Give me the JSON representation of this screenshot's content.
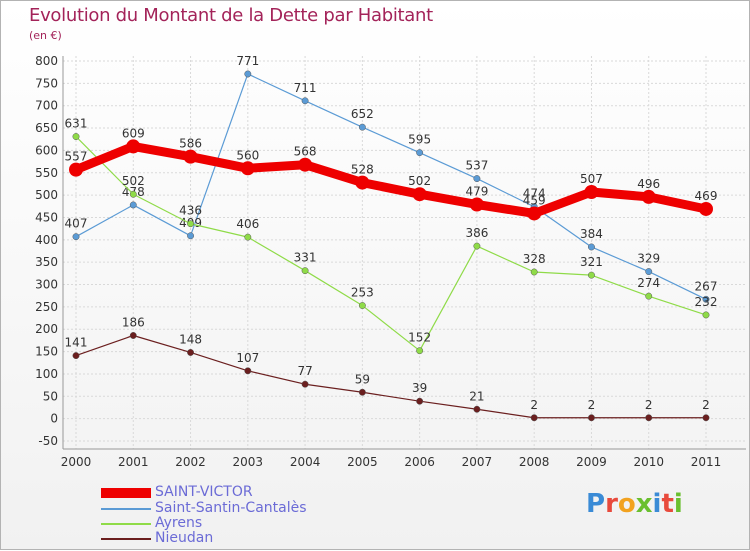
{
  "chart_data": {
    "type": "line",
    "title": "Evolution du Montant de la Dette par Habitant",
    "subtitle": "(en €)",
    "x": [
      "2000",
      "2001",
      "2002",
      "2003",
      "2004",
      "2005",
      "2006",
      "2007",
      "2008",
      "2009",
      "2010",
      "2011"
    ],
    "ylim": [
      -50,
      800
    ],
    "yticks": [
      -50,
      0,
      50,
      100,
      150,
      200,
      250,
      300,
      350,
      400,
      450,
      500,
      550,
      600,
      650,
      700,
      750,
      800
    ],
    "grid": true,
    "legend_position": "bottom-left",
    "series": [
      {
        "name": "SAINT-VICTOR",
        "color": "#ee0000",
        "values": [
          557,
          609,
          586,
          560,
          568,
          528,
          502,
          479,
          459,
          507,
          496,
          469
        ]
      },
      {
        "name": "Saint-Santin-Cantalès",
        "color": "#5b9bd5",
        "values": [
          407,
          478,
          409,
          771,
          711,
          652,
          595,
          537,
          474,
          384,
          329,
          267
        ]
      },
      {
        "name": "Ayrens",
        "color": "#8fdb48",
        "values": [
          631,
          502,
          436,
          406,
          331,
          253,
          152,
          386,
          328,
          321,
          274,
          232
        ]
      },
      {
        "name": "Nieudan",
        "color": "#6b1f1f",
        "values": [
          141,
          186,
          148,
          107,
          77,
          59,
          39,
          21,
          2,
          2,
          2,
          2
        ]
      }
    ]
  },
  "logo": {
    "text": "Proxiti",
    "letter_colors": [
      "#3a8bd6",
      "#e84a3c",
      "#f2a21f",
      "#6abf2f",
      "#3a8bd6",
      "#e84a3c",
      "#6abf2f"
    ]
  }
}
